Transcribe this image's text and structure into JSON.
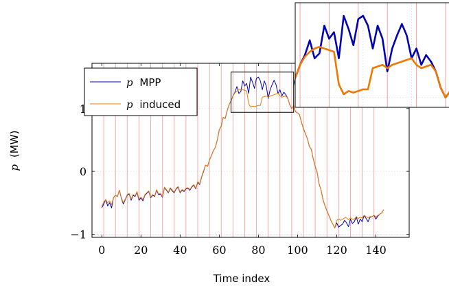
{
  "chart_data": {
    "type": "line",
    "title": "",
    "xlabel": "Time index",
    "ylabel_symbol": "p",
    "ylabel_unit": "(MW)",
    "xlim": [
      -5,
      157
    ],
    "ylim": [
      -1.05,
      1.72
    ],
    "xticks": [
      0,
      20,
      40,
      60,
      80,
      100,
      120,
      140
    ],
    "yticks": [
      -1,
      0,
      1
    ],
    "ytick_labels": [
      "−1",
      "0",
      "1"
    ],
    "grid": true,
    "legend": {
      "placement": "top-left",
      "entries": [
        {
          "symbol": "p",
          "text": "MPP"
        },
        {
          "symbol": "p",
          "text": "induced"
        }
      ]
    },
    "vertical_lines": [
      1,
      7,
      13,
      19,
      25,
      31,
      37,
      43,
      49,
      55,
      61,
      67,
      73,
      79,
      85,
      91,
      97,
      103,
      109,
      115,
      121,
      127,
      133,
      139
    ],
    "x": [
      0,
      1,
      2,
      3,
      4,
      5,
      6,
      7,
      8,
      9,
      10,
      11,
      12,
      13,
      14,
      15,
      16,
      17,
      18,
      19,
      20,
      21,
      22,
      23,
      24,
      25,
      26,
      27,
      28,
      29,
      30,
      31,
      32,
      33,
      34,
      35,
      36,
      37,
      38,
      39,
      40,
      41,
      42,
      43,
      44,
      45,
      46,
      47,
      48,
      49,
      50,
      51,
      52,
      53,
      54,
      55,
      56,
      57,
      58,
      59,
      60,
      61,
      62,
      63,
      64,
      65,
      66,
      67,
      68,
      69,
      70,
      71,
      72,
      73,
      74,
      75,
      76,
      77,
      78,
      79,
      80,
      81,
      82,
      83,
      84,
      85,
      86,
      87,
      88,
      89,
      90,
      91,
      92,
      93,
      94,
      95,
      96,
      97,
      98,
      99,
      100,
      101,
      102,
      103,
      104,
      105,
      106,
      107,
      108,
      109,
      110,
      111,
      112,
      113,
      114,
      115,
      116,
      117,
      118,
      119,
      120,
      121,
      122,
      123,
      124,
      125,
      126,
      127,
      128,
      129,
      130,
      131,
      132,
      133,
      134,
      135,
      136,
      137,
      138,
      139,
      140,
      141,
      142,
      143,
      144
    ],
    "series": [
      {
        "name": "MPP",
        "color": "#0000b4",
        "values": [
          -0.58,
          -0.52,
          -0.45,
          -0.55,
          -0.5,
          -0.58,
          -0.42,
          -0.38,
          -0.4,
          -0.3,
          -0.43,
          -0.52,
          -0.45,
          -0.38,
          -0.36,
          -0.46,
          -0.38,
          -0.4,
          -0.33,
          -0.46,
          -0.42,
          -0.47,
          -0.38,
          -0.35,
          -0.32,
          -0.42,
          -0.38,
          -0.4,
          -0.3,
          -0.37,
          -0.36,
          -0.41,
          -0.26,
          -0.3,
          -0.34,
          -0.27,
          -0.31,
          -0.34,
          -0.28,
          -0.25,
          -0.34,
          -0.3,
          -0.32,
          -0.28,
          -0.27,
          -0.3,
          -0.25,
          -0.22,
          -0.28,
          -0.17,
          -0.21,
          -0.09,
          0.0,
          0.1,
          0.08,
          0.18,
          0.25,
          0.33,
          0.38,
          0.5,
          0.66,
          0.72,
          0.86,
          0.84,
          0.96,
          1.06,
          1.12,
          1.2,
          1.26,
          1.35,
          1.24,
          1.27,
          1.44,
          1.36,
          1.4,
          1.24,
          1.5,
          1.42,
          1.32,
          1.48,
          1.5,
          1.44,
          1.3,
          1.44,
          1.36,
          1.16,
          1.3,
          1.38,
          1.45,
          1.38,
          1.24,
          1.3,
          1.2,
          1.26,
          1.22,
          1.16,
          1.06,
          1.0,
          1.04,
          0.95,
          0.93,
          0.9,
          0.78,
          0.68,
          0.6,
          0.52,
          0.4,
          0.35,
          0.2,
          0.08,
          -0.02,
          -0.2,
          -0.3,
          -0.45,
          -0.55,
          -0.63,
          -0.7,
          -0.78,
          -0.84,
          -0.9,
          -0.82,
          -0.89,
          -0.86,
          -0.84,
          -0.78,
          -0.82,
          -0.88,
          -0.76,
          -0.83,
          -0.8,
          -0.72,
          -0.84,
          -0.76,
          -0.8,
          -0.7,
          -0.75,
          -0.8,
          -0.73,
          -0.72,
          -0.7,
          -0.76,
          -0.71,
          -0.68,
          -0.66,
          -0.61
        ]
      },
      {
        "name": "induced",
        "color": "#f07800",
        "values": [
          -0.55,
          -0.49,
          -0.45,
          -0.5,
          -0.47,
          -0.53,
          -0.42,
          -0.38,
          -0.4,
          -0.3,
          -0.42,
          -0.5,
          -0.44,
          -0.37,
          -0.35,
          -0.44,
          -0.37,
          -0.39,
          -0.32,
          -0.44,
          -0.41,
          -0.45,
          -0.37,
          -0.34,
          -0.31,
          -0.41,
          -0.37,
          -0.39,
          -0.29,
          -0.36,
          -0.35,
          -0.4,
          -0.25,
          -0.29,
          -0.33,
          -0.26,
          -0.3,
          -0.33,
          -0.27,
          -0.24,
          -0.33,
          -0.29,
          -0.31,
          -0.27,
          -0.26,
          -0.29,
          -0.24,
          -0.21,
          -0.27,
          -0.16,
          -0.2,
          -0.08,
          0.01,
          0.1,
          0.08,
          0.18,
          0.25,
          0.33,
          0.38,
          0.5,
          0.66,
          0.72,
          0.86,
          0.84,
          0.96,
          1.06,
          1.12,
          1.2,
          1.25,
          1.28,
          1.3,
          1.31,
          1.3,
          1.29,
          1.28,
          1.08,
          1.02,
          1.04,
          1.03,
          1.04,
          1.05,
          1.05,
          1.18,
          1.19,
          1.2,
          1.18,
          1.2,
          1.21,
          1.22,
          1.23,
          1.24,
          1.2,
          1.18,
          1.19,
          1.2,
          1.16,
          1.06,
          1.0,
          1.04,
          0.95,
          0.93,
          0.9,
          0.78,
          0.68,
          0.6,
          0.52,
          0.4,
          0.35,
          0.2,
          0.08,
          -0.02,
          -0.2,
          -0.3,
          -0.45,
          -0.55,
          -0.63,
          -0.7,
          -0.78,
          -0.84,
          -0.9,
          -0.78,
          -0.76,
          -0.78,
          -0.76,
          -0.74,
          -0.74,
          -0.77,
          -0.74,
          -0.76,
          -0.76,
          -0.72,
          -0.75,
          -0.73,
          -0.74,
          -0.7,
          -0.72,
          -0.74,
          -0.72,
          -0.72,
          -0.7,
          -0.72,
          -0.7,
          -0.68,
          -0.66,
          -0.61
        ]
      }
    ],
    "inset": {
      "xlim": [
        66,
        98
      ],
      "ylim": [
        0.94,
        1.58
      ],
      "stroke_width": 2.6,
      "vertical_lines": [
        67,
        73,
        79,
        85,
        91,
        97
      ]
    }
  }
}
